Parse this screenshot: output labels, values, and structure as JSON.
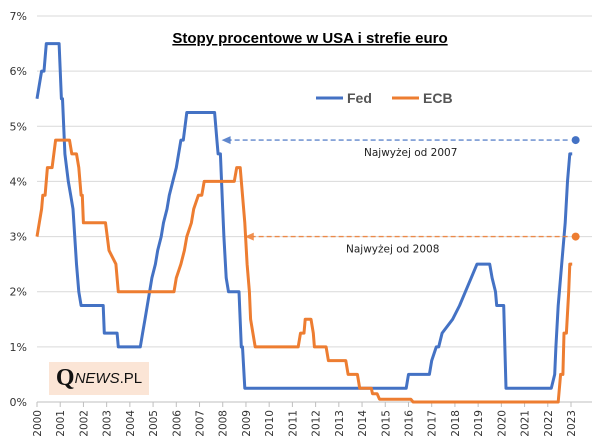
{
  "chart_data": {
    "type": "line",
    "title": "Stopy procentowe w USA i strefie euro",
    "xlabel": "",
    "ylabel": "",
    "ylim": [
      0,
      7
    ],
    "xlim": [
      2000,
      2023.9
    ],
    "y_ticks": [
      "0%",
      "1%",
      "2%",
      "3%",
      "4%",
      "5%",
      "6%",
      "7%"
    ],
    "x_ticks": [
      "2000",
      "2001",
      "2002",
      "2003",
      "2004",
      "2005",
      "2006",
      "2007",
      "2008",
      "2009",
      "2010",
      "2011",
      "2012",
      "2013",
      "2014",
      "2015",
      "2016",
      "2017",
      "2018",
      "2019",
      "2020",
      "2021",
      "2022",
      "2023"
    ],
    "grid": true,
    "legend": {
      "position": "top-right",
      "entries": [
        "Fed",
        "ECB"
      ]
    },
    "series": [
      {
        "name": "Fed",
        "color": "#4472c4",
        "points": [
          [
            2000.0,
            5.5
          ],
          [
            2000.2,
            6.0
          ],
          [
            2000.3,
            6.0
          ],
          [
            2000.4,
            6.5
          ],
          [
            2000.95,
            6.5
          ],
          [
            2001.05,
            5.5
          ],
          [
            2001.1,
            5.5
          ],
          [
            2001.2,
            4.5
          ],
          [
            2001.35,
            4.0
          ],
          [
            2001.45,
            3.75
          ],
          [
            2001.55,
            3.5
          ],
          [
            2001.7,
            2.5
          ],
          [
            2001.8,
            2.0
          ],
          [
            2001.9,
            1.75
          ],
          [
            2002.85,
            1.75
          ],
          [
            2002.9,
            1.25
          ],
          [
            2003.45,
            1.25
          ],
          [
            2003.5,
            1.0
          ],
          [
            2004.45,
            1.0
          ],
          [
            2004.55,
            1.25
          ],
          [
            2004.65,
            1.5
          ],
          [
            2004.75,
            1.75
          ],
          [
            2004.85,
            2.0
          ],
          [
            2004.95,
            2.25
          ],
          [
            2005.1,
            2.5
          ],
          [
            2005.2,
            2.75
          ],
          [
            2005.35,
            3.0
          ],
          [
            2005.45,
            3.25
          ],
          [
            2005.6,
            3.5
          ],
          [
            2005.7,
            3.75
          ],
          [
            2005.85,
            4.0
          ],
          [
            2006.0,
            4.25
          ],
          [
            2006.1,
            4.5
          ],
          [
            2006.2,
            4.75
          ],
          [
            2006.3,
            4.75
          ],
          [
            2006.45,
            5.25
          ],
          [
            2007.65,
            5.25
          ],
          [
            2007.75,
            4.75
          ],
          [
            2007.8,
            4.5
          ],
          [
            2007.9,
            4.5
          ],
          [
            2008.0,
            3.5
          ],
          [
            2008.05,
            3.0
          ],
          [
            2008.15,
            2.25
          ],
          [
            2008.25,
            2.0
          ],
          [
            2008.7,
            2.0
          ],
          [
            2008.8,
            1.0
          ],
          [
            2008.85,
            1.0
          ],
          [
            2008.95,
            0.25
          ],
          [
            2015.9,
            0.25
          ],
          [
            2016.0,
            0.5
          ],
          [
            2016.9,
            0.5
          ],
          [
            2017.0,
            0.75
          ],
          [
            2017.2,
            1.0
          ],
          [
            2017.3,
            1.0
          ],
          [
            2017.45,
            1.25
          ],
          [
            2017.9,
            1.5
          ],
          [
            2018.2,
            1.75
          ],
          [
            2018.45,
            2.0
          ],
          [
            2018.7,
            2.25
          ],
          [
            2018.95,
            2.5
          ],
          [
            2019.5,
            2.5
          ],
          [
            2019.6,
            2.25
          ],
          [
            2019.75,
            2.0
          ],
          [
            2019.8,
            1.75
          ],
          [
            2020.1,
            1.75
          ],
          [
            2020.2,
            0.25
          ],
          [
            2022.15,
            0.25
          ],
          [
            2022.3,
            0.5
          ],
          [
            2022.35,
            1.0
          ],
          [
            2022.45,
            1.75
          ],
          [
            2022.6,
            2.5
          ],
          [
            2022.75,
            3.25
          ],
          [
            2022.85,
            4.0
          ],
          [
            2022.95,
            4.5
          ],
          [
            2023.05,
            4.5
          ]
        ]
      },
      {
        "name": "ECB",
        "color": "#ed7d31",
        "points": [
          [
            2000.0,
            3.0
          ],
          [
            2000.1,
            3.25
          ],
          [
            2000.2,
            3.5
          ],
          [
            2000.25,
            3.75
          ],
          [
            2000.35,
            3.75
          ],
          [
            2000.45,
            4.25
          ],
          [
            2000.65,
            4.25
          ],
          [
            2000.8,
            4.75
          ],
          [
            2001.4,
            4.75
          ],
          [
            2001.5,
            4.5
          ],
          [
            2001.7,
            4.5
          ],
          [
            2001.8,
            4.25
          ],
          [
            2001.9,
            3.75
          ],
          [
            2001.95,
            3.75
          ],
          [
            2002.0,
            3.25
          ],
          [
            2002.95,
            3.25
          ],
          [
            2003.1,
            2.75
          ],
          [
            2003.4,
            2.5
          ],
          [
            2003.5,
            2.0
          ],
          [
            2005.9,
            2.0
          ],
          [
            2006.0,
            2.25
          ],
          [
            2006.2,
            2.5
          ],
          [
            2006.35,
            2.75
          ],
          [
            2006.45,
            3.0
          ],
          [
            2006.65,
            3.25
          ],
          [
            2006.75,
            3.5
          ],
          [
            2006.95,
            3.75
          ],
          [
            2007.1,
            3.75
          ],
          [
            2007.2,
            4.0
          ],
          [
            2008.5,
            4.0
          ],
          [
            2008.6,
            4.25
          ],
          [
            2008.75,
            4.25
          ],
          [
            2008.85,
            3.75
          ],
          [
            2008.95,
            3.25
          ],
          [
            2009.05,
            2.5
          ],
          [
            2009.15,
            2.0
          ],
          [
            2009.2,
            1.5
          ],
          [
            2009.3,
            1.25
          ],
          [
            2009.4,
            1.0
          ],
          [
            2011.25,
            1.0
          ],
          [
            2011.35,
            1.25
          ],
          [
            2011.5,
            1.25
          ],
          [
            2011.55,
            1.5
          ],
          [
            2011.8,
            1.5
          ],
          [
            2011.9,
            1.25
          ],
          [
            2011.95,
            1.0
          ],
          [
            2012.45,
            1.0
          ],
          [
            2012.55,
            0.75
          ],
          [
            2013.3,
            0.75
          ],
          [
            2013.4,
            0.5
          ],
          [
            2013.8,
            0.5
          ],
          [
            2013.9,
            0.25
          ],
          [
            2014.4,
            0.25
          ],
          [
            2014.45,
            0.15
          ],
          [
            2014.65,
            0.15
          ],
          [
            2014.75,
            0.05
          ],
          [
            2016.1,
            0.05
          ],
          [
            2016.2,
            0.0
          ],
          [
            2022.45,
            0.0
          ],
          [
            2022.55,
            0.5
          ],
          [
            2022.65,
            0.5
          ],
          [
            2022.7,
            1.25
          ],
          [
            2022.8,
            1.25
          ],
          [
            2022.9,
            2.0
          ],
          [
            2022.95,
            2.5
          ],
          [
            2023.05,
            2.5
          ]
        ]
      }
    ],
    "annotations": [
      {
        "text": "Najwyżej od 2007",
        "value": 4.75,
        "from_x": 2023.2,
        "to_x": 2007.95,
        "color": "#4472c4"
      },
      {
        "text": "Najwyżej od 2008",
        "value": 3.0,
        "from_x": 2023.2,
        "to_x": 2008.95,
        "color": "#ed7d31"
      }
    ]
  },
  "logo": {
    "q": "Q",
    "news": "NEWS",
    "pl": ".PL"
  },
  "colors": {
    "grid": "#d9d9d9",
    "axis": "#bfbfbf",
    "logo_bg": "#fbe5d6"
  }
}
